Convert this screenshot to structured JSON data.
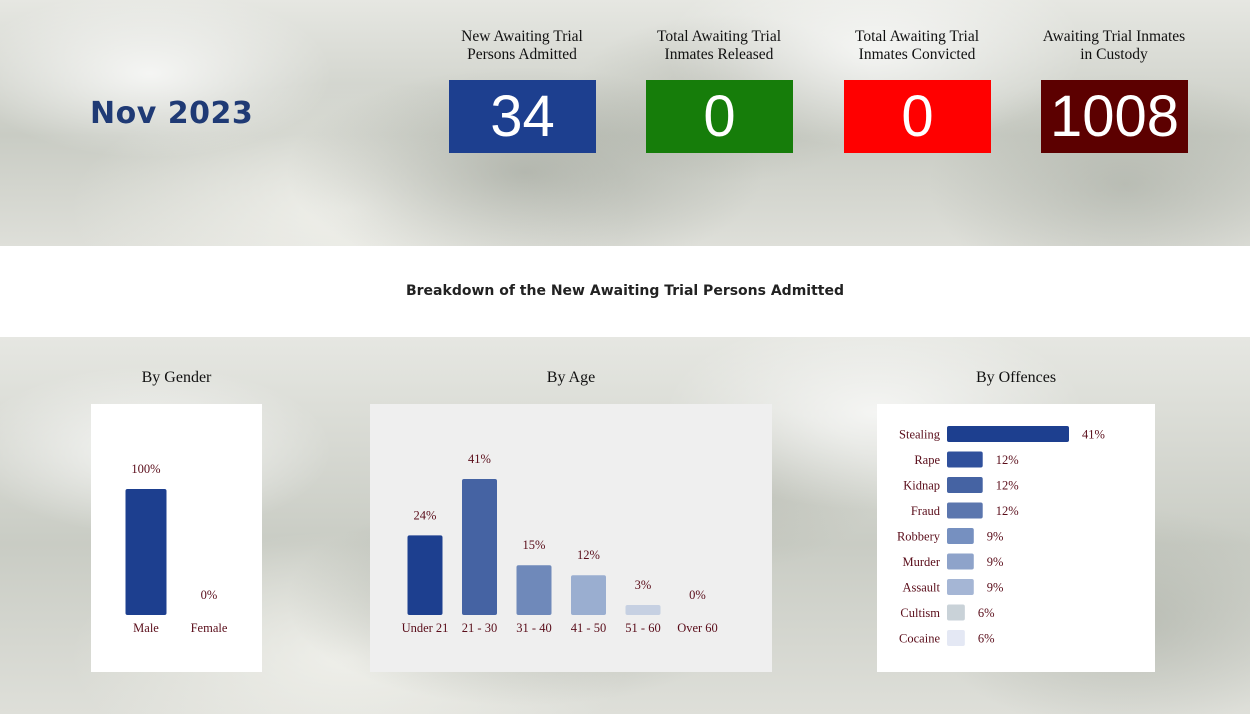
{
  "period": "Nov 2023",
  "kpis": [
    {
      "label_line1": "New Awaiting Trial",
      "label_line2": "Persons Admitted",
      "value": "34",
      "color": "#1d3f8f"
    },
    {
      "label_line1": "Total Awaiting Trial",
      "label_line2": "Inmates Released",
      "value": "0",
      "color": "#167d0a"
    },
    {
      "label_line1": "Total Awaiting Trial",
      "label_line2": "Inmates Convicted",
      "value": "0",
      "color": "#ff0000"
    },
    {
      "label_line1": "Awaiting Trial Inmates",
      "label_line2": "in Custody",
      "value": "1008",
      "color": "#5c0000"
    }
  ],
  "breakdown_title": "Breakdown of the New Awaiting Trial Persons Admitted",
  "panels": {
    "gender_title": "By Gender",
    "age_title": "By Age",
    "offences_title": "By Offences"
  },
  "chart_data": [
    {
      "type": "bar",
      "title": "By Gender",
      "categories": [
        "Male",
        "Female"
      ],
      "values": [
        100,
        0
      ],
      "value_labels": [
        "100%",
        "0%"
      ],
      "ylim": [
        0,
        100
      ],
      "colors": [
        "#1d3f8f",
        "#1d3f8f"
      ]
    },
    {
      "type": "bar",
      "title": "By Age",
      "categories": [
        "Under 21",
        "21 - 30",
        "31 - 40",
        "41 - 50",
        "51 - 60",
        "Over 60"
      ],
      "values": [
        24,
        41,
        15,
        12,
        3,
        0
      ],
      "value_labels": [
        "24%",
        "41%",
        "15%",
        "12%",
        "3%",
        "0%"
      ],
      "ylim": [
        0,
        41
      ],
      "colors": [
        "#1d3f8f",
        "#4563a3",
        "#6f89ba",
        "#9aaed0",
        "#c6d0e2",
        "#e3e8f1"
      ]
    },
    {
      "type": "bar",
      "orientation": "horizontal",
      "title": "By Offences",
      "categories": [
        "Stealing",
        "Rape",
        "Kidnap",
        "Fraud",
        "Robbery",
        "Murder",
        "Assault",
        "Cultism",
        "Cocaine"
      ],
      "values": [
        41,
        12,
        12,
        12,
        9,
        9,
        9,
        6,
        6
      ],
      "value_labels": [
        "41%",
        "12%",
        "12%",
        "12%",
        "9%",
        "9%",
        "9%",
        "6%",
        "6%"
      ],
      "xlim": [
        0,
        41
      ],
      "colors": [
        "#1d3f8f",
        "#2f509c",
        "#4563a3",
        "#5b76ae",
        "#7690c0",
        "#8ea3ca",
        "#a5b6d5",
        "#c9d2d8",
        "#e4e8f4"
      ]
    }
  ]
}
